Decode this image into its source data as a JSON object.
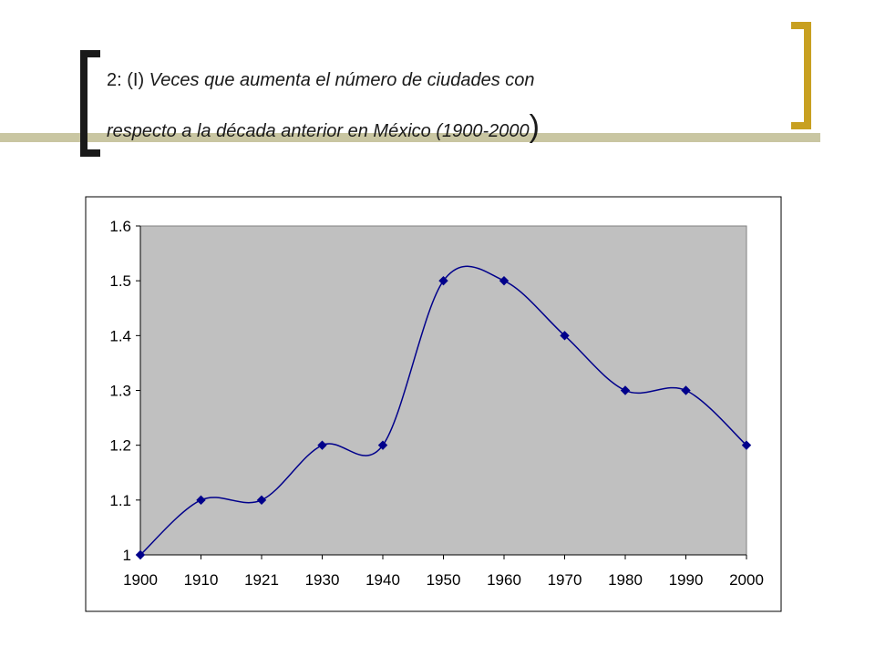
{
  "slide": {
    "title_prefix": "2: (I) ",
    "title_line1": "Veces que aumenta el número de ciudades con",
    "title_line2": "respecto a la década anterior en México (1900-2000",
    "title_suffix": ")"
  },
  "colors": {
    "accent_bracket": "#c8a021",
    "plot_background": "#c0c0c0",
    "series_line": "#00008b",
    "bar": "#c9c6a2"
  },
  "chart_data": {
    "type": "line",
    "title": "",
    "xlabel": "",
    "ylabel": "",
    "categories": [
      "1900",
      "1910",
      "1921",
      "1930",
      "1940",
      "1950",
      "1960",
      "1970",
      "1980",
      "1990",
      "2000"
    ],
    "series": [
      {
        "values": [
          1.0,
          1.1,
          1.1,
          1.2,
          1.2,
          1.5,
          1.5,
          1.4,
          1.3,
          1.3,
          1.2
        ]
      }
    ],
    "ylim": [
      1.0,
      1.6
    ],
    "yticks": [
      "1",
      "1.1",
      "1.2",
      "1.3",
      "1.4",
      "1.5",
      "1.6"
    ],
    "smoothed": true,
    "markers": "diamond",
    "grid": false,
    "legend": "none"
  }
}
